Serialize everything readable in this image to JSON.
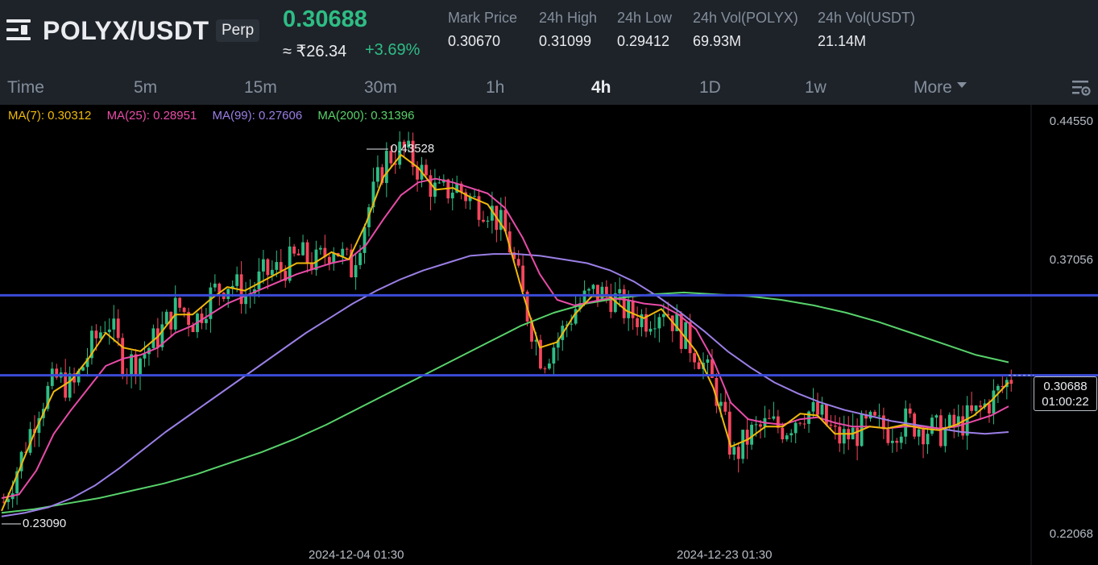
{
  "header": {
    "symbol": "POLYX/USDT",
    "contract_type": "Perp",
    "last_price": "0.30688",
    "fiat_price": "≈ ₹26.34",
    "change_pct": "+3.69%",
    "stats": [
      {
        "label": "Mark Price",
        "value": "0.30670"
      },
      {
        "label": "24h High",
        "value": "0.31099"
      },
      {
        "label": "24h Low",
        "value": "0.29412"
      },
      {
        "label": "24h Vol(POLYX)",
        "value": "69.93M"
      },
      {
        "label": "24h Vol(USDT)",
        "value": "21.14M"
      }
    ]
  },
  "intervals": {
    "items": [
      "Time",
      "5m",
      "15m",
      "30m",
      "1h",
      "4h",
      "1D",
      "1w"
    ],
    "active": "4h",
    "more_label": "More"
  },
  "chart": {
    "ma_legend": [
      {
        "label": "MA(7): 0.30312",
        "color": "#f0b90b"
      },
      {
        "label": "MA(25): 0.28951",
        "color": "#e84ca8"
      },
      {
        "label": "MA(99): 0.27606",
        "color": "#9b7fe6"
      },
      {
        "label": "MA(200): 0.31396",
        "color": "#58d26b"
      }
    ],
    "y_axis_labels": [
      "0.44550",
      "0.37056",
      "0.22068"
    ],
    "x_axis_labels": [
      "2024-12-04 01:30",
      "2024-12-23 01:30"
    ],
    "high_marker": "0.43528",
    "low_marker": "0.23090",
    "current_price": "0.30688",
    "countdown": "01:00:22",
    "horizontal_lines": [
      0.3505,
      0.3069
    ],
    "colors": {
      "up": "#2ebd85",
      "down": "#f6465d",
      "hline": "#3b4bd6"
    }
  },
  "chart_data": {
    "type": "candlestick",
    "interval": "4h",
    "ylim": [
      0.22068,
      0.4455
    ],
    "price_ticks": [
      0.4455,
      0.37056,
      0.22068
    ],
    "date_ticks": [
      "2024-12-04 01:30",
      "2024-12-23 01:30"
    ],
    "close_path": [
      0.238,
      0.262,
      0.29,
      0.305,
      0.3,
      0.322,
      0.338,
      0.312,
      0.318,
      0.33,
      0.345,
      0.336,
      0.352,
      0.358,
      0.35,
      0.362,
      0.365,
      0.372,
      0.368,
      0.378,
      0.365,
      0.398,
      0.425,
      0.43,
      0.418,
      0.405,
      0.41,
      0.402,
      0.398,
      0.382,
      0.345,
      0.315,
      0.328,
      0.345,
      0.352,
      0.35,
      0.34,
      0.338,
      0.345,
      0.33,
      0.318,
      0.298,
      0.262,
      0.275,
      0.28,
      0.278,
      0.288,
      0.285,
      0.272,
      0.275,
      0.28,
      0.277,
      0.282,
      0.278,
      0.276,
      0.28,
      0.286,
      0.295,
      0.306
    ],
    "ma7_path": [
      0.233,
      0.255,
      0.278,
      0.298,
      0.304,
      0.316,
      0.33,
      0.322,
      0.32,
      0.328,
      0.34,
      0.34,
      0.348,
      0.355,
      0.353,
      0.358,
      0.363,
      0.368,
      0.368,
      0.374,
      0.37,
      0.39,
      0.415,
      0.427,
      0.42,
      0.408,
      0.409,
      0.404,
      0.4,
      0.386,
      0.352,
      0.322,
      0.325,
      0.34,
      0.35,
      0.35,
      0.342,
      0.338,
      0.343,
      0.332,
      0.32,
      0.3,
      0.268,
      0.272,
      0.279,
      0.279,
      0.286,
      0.285,
      0.275,
      0.275,
      0.279,
      0.278,
      0.28,
      0.278,
      0.277,
      0.28,
      0.285,
      0.293,
      0.303
    ],
    "ma25_path": [
      0.24,
      0.242,
      0.255,
      0.275,
      0.288,
      0.3,
      0.312,
      0.316,
      0.318,
      0.322,
      0.33,
      0.334,
      0.34,
      0.346,
      0.35,
      0.354,
      0.358,
      0.362,
      0.365,
      0.368,
      0.37,
      0.378,
      0.392,
      0.405,
      0.412,
      0.414,
      0.412,
      0.409,
      0.406,
      0.398,
      0.382,
      0.362,
      0.348,
      0.345,
      0.347,
      0.349,
      0.348,
      0.346,
      0.345,
      0.34,
      0.332,
      0.315,
      0.292,
      0.283,
      0.281,
      0.28,
      0.283,
      0.284,
      0.281,
      0.279,
      0.279,
      0.278,
      0.279,
      0.279,
      0.278,
      0.279,
      0.282,
      0.285,
      0.29
    ],
    "ma99_path": [
      0.23,
      0.232,
      0.235,
      0.24,
      0.247,
      0.256,
      0.266,
      0.276,
      0.285,
      0.294,
      0.303,
      0.312,
      0.321,
      0.33,
      0.338,
      0.346,
      0.353,
      0.359,
      0.364,
      0.368,
      0.372,
      0.373,
      0.373,
      0.372,
      0.37,
      0.368,
      0.364,
      0.358,
      0.35,
      0.341,
      0.331,
      0.32,
      0.311,
      0.303,
      0.297,
      0.292,
      0.288,
      0.285,
      0.282,
      0.28,
      0.278,
      0.276,
      0.275,
      0.276
    ],
    "ma200_path": [
      0.232,
      0.234,
      0.237,
      0.24,
      0.244,
      0.248,
      0.253,
      0.259,
      0.265,
      0.272,
      0.28,
      0.289,
      0.298,
      0.307,
      0.316,
      0.325,
      0.334,
      0.341,
      0.346,
      0.349,
      0.351,
      0.352,
      0.351,
      0.35,
      0.348,
      0.345,
      0.341,
      0.336,
      0.33,
      0.324,
      0.318,
      0.314
    ]
  }
}
